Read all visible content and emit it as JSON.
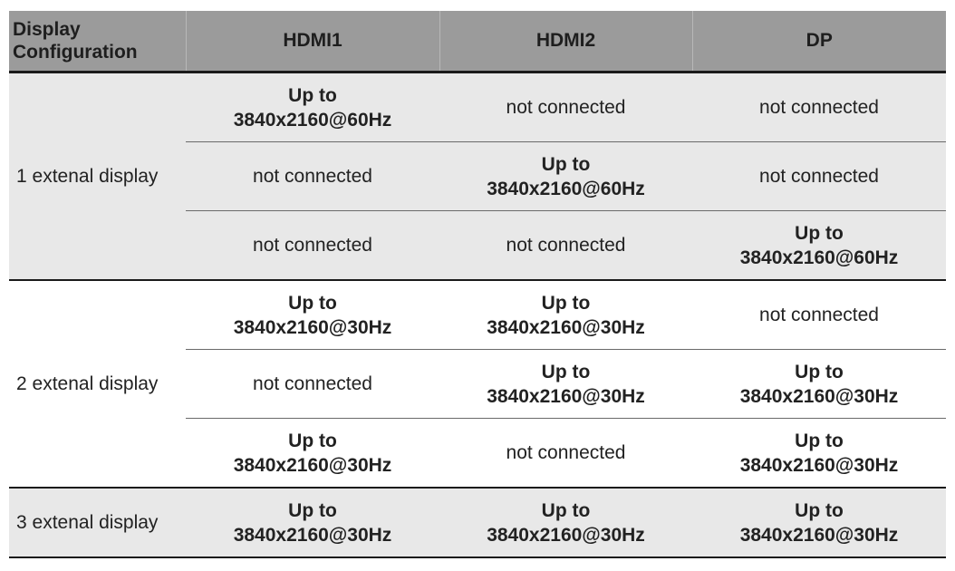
{
  "header": {
    "config": "Display Configuration",
    "cols": [
      "HDMI1",
      "HDMI2",
      "DP"
    ]
  },
  "groups": [
    {
      "label": "1 extenal display",
      "shaded": true,
      "rows": [
        [
          "Up to 3840x2160@60Hz",
          "not connected",
          "not connected"
        ],
        [
          "not connected",
          "Up to 3840x2160@60Hz",
          "not connected"
        ],
        [
          "not connected",
          "not connected",
          "Up to 3840x2160@60Hz"
        ]
      ]
    },
    {
      "label": "2 extenal display",
      "shaded": false,
      "rows": [
        [
          "Up to 3840x2160@30Hz",
          "Up to 3840x2160@30Hz",
          "not connected"
        ],
        [
          "not connected",
          "Up to 3840x2160@30Hz",
          "Up to 3840x2160@30Hz"
        ],
        [
          "Up to 3840x2160@30Hz",
          "not connected",
          "Up to 3840x2160@30Hz"
        ]
      ]
    },
    {
      "label": "3 extenal display",
      "shaded": true,
      "rows": [
        [
          "Up to 3840x2160@30Hz",
          "Up to 3840x2160@30Hz",
          "Up to 3840x2160@30Hz"
        ]
      ]
    }
  ]
}
